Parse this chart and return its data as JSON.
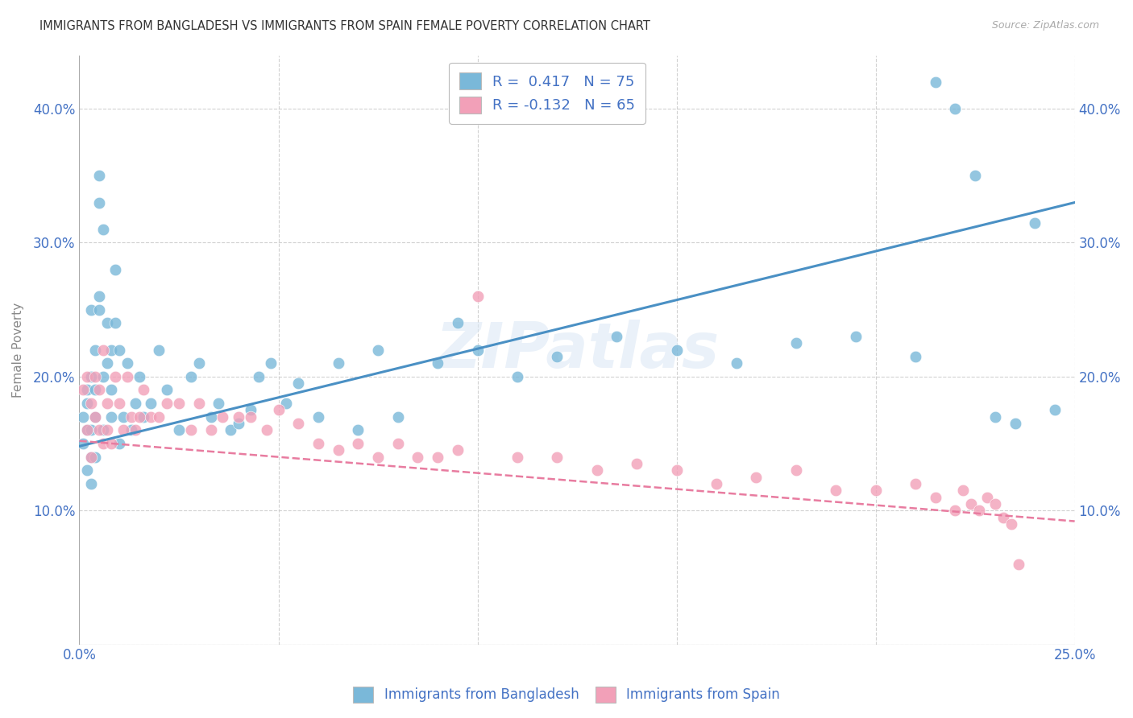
{
  "title": "IMMIGRANTS FROM BANGLADESH VS IMMIGRANTS FROM SPAIN FEMALE POVERTY CORRELATION CHART",
  "source": "Source: ZipAtlas.com",
  "ylabel": "Female Poverty",
  "x_min": 0.0,
  "x_max": 0.25,
  "y_min": 0.0,
  "y_max": 0.44,
  "x_ticks": [
    0.0,
    0.05,
    0.1,
    0.15,
    0.2,
    0.25
  ],
  "y_ticks": [
    0.0,
    0.1,
    0.2,
    0.3,
    0.4
  ],
  "bangladesh_R": 0.417,
  "bangladesh_N": 75,
  "spain_R": -0.132,
  "spain_N": 65,
  "blue_color": "#7ab8d9",
  "pink_color": "#f2a0b8",
  "blue_line_color": "#4a90c4",
  "pink_line_color": "#e87ca0",
  "background_color": "#ffffff",
  "grid_color": "#cccccc",
  "axis_label_color": "#4472c4",
  "watermark": "ZIPatlas",
  "bangladesh_x": [
    0.001,
    0.001,
    0.002,
    0.002,
    0.002,
    0.002,
    0.003,
    0.003,
    0.003,
    0.003,
    0.003,
    0.004,
    0.004,
    0.004,
    0.004,
    0.005,
    0.005,
    0.005,
    0.005,
    0.006,
    0.006,
    0.006,
    0.007,
    0.007,
    0.008,
    0.008,
    0.008,
    0.009,
    0.009,
    0.01,
    0.01,
    0.011,
    0.012,
    0.013,
    0.014,
    0.015,
    0.016,
    0.018,
    0.02,
    0.022,
    0.025,
    0.028,
    0.03,
    0.033,
    0.035,
    0.038,
    0.04,
    0.043,
    0.045,
    0.048,
    0.052,
    0.055,
    0.06,
    0.065,
    0.07,
    0.075,
    0.08,
    0.09,
    0.095,
    0.1,
    0.11,
    0.12,
    0.135,
    0.15,
    0.165,
    0.18,
    0.195,
    0.21,
    0.215,
    0.22,
    0.225,
    0.23,
    0.235,
    0.24,
    0.245
  ],
  "bangladesh_y": [
    0.15,
    0.17,
    0.19,
    0.16,
    0.13,
    0.18,
    0.14,
    0.2,
    0.16,
    0.12,
    0.25,
    0.22,
    0.17,
    0.19,
    0.14,
    0.26,
    0.35,
    0.25,
    0.33,
    0.31,
    0.2,
    0.16,
    0.24,
    0.21,
    0.22,
    0.17,
    0.19,
    0.28,
    0.24,
    0.22,
    0.15,
    0.17,
    0.21,
    0.16,
    0.18,
    0.2,
    0.17,
    0.18,
    0.22,
    0.19,
    0.16,
    0.2,
    0.21,
    0.17,
    0.18,
    0.16,
    0.165,
    0.175,
    0.2,
    0.21,
    0.18,
    0.195,
    0.17,
    0.21,
    0.16,
    0.22,
    0.17,
    0.21,
    0.24,
    0.22,
    0.2,
    0.215,
    0.23,
    0.22,
    0.21,
    0.225,
    0.23,
    0.215,
    0.42,
    0.4,
    0.35,
    0.17,
    0.165,
    0.315,
    0.175
  ],
  "spain_x": [
    0.001,
    0.002,
    0.002,
    0.003,
    0.003,
    0.004,
    0.004,
    0.005,
    0.005,
    0.006,
    0.006,
    0.007,
    0.007,
    0.008,
    0.009,
    0.01,
    0.011,
    0.012,
    0.013,
    0.014,
    0.015,
    0.016,
    0.018,
    0.02,
    0.022,
    0.025,
    0.028,
    0.03,
    0.033,
    0.036,
    0.04,
    0.043,
    0.047,
    0.05,
    0.055,
    0.06,
    0.065,
    0.07,
    0.075,
    0.08,
    0.085,
    0.09,
    0.095,
    0.1,
    0.11,
    0.12,
    0.13,
    0.14,
    0.15,
    0.16,
    0.17,
    0.18,
    0.19,
    0.2,
    0.21,
    0.215,
    0.22,
    0.222,
    0.224,
    0.226,
    0.228,
    0.23,
    0.232,
    0.234,
    0.236
  ],
  "spain_y": [
    0.19,
    0.2,
    0.16,
    0.18,
    0.14,
    0.2,
    0.17,
    0.19,
    0.16,
    0.15,
    0.22,
    0.18,
    0.16,
    0.15,
    0.2,
    0.18,
    0.16,
    0.2,
    0.17,
    0.16,
    0.17,
    0.19,
    0.17,
    0.17,
    0.18,
    0.18,
    0.16,
    0.18,
    0.16,
    0.17,
    0.17,
    0.17,
    0.16,
    0.175,
    0.165,
    0.15,
    0.145,
    0.15,
    0.14,
    0.15,
    0.14,
    0.14,
    0.145,
    0.26,
    0.14,
    0.14,
    0.13,
    0.135,
    0.13,
    0.12,
    0.125,
    0.13,
    0.115,
    0.115,
    0.12,
    0.11,
    0.1,
    0.115,
    0.105,
    0.1,
    0.11,
    0.105,
    0.095,
    0.09,
    0.06
  ]
}
